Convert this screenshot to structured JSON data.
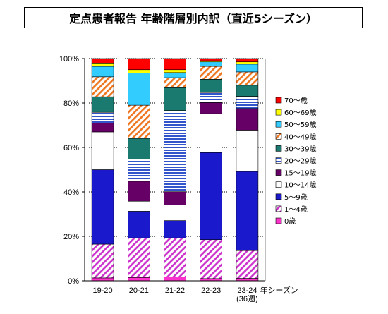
{
  "title": "定点患者報告  年齢階層別内訳（直近5シーズン）",
  "chart_data": {
    "type": "bar",
    "stacked": true,
    "percent": true,
    "categories": [
      "19-20",
      "20-21",
      "21-22",
      "22-23",
      "23-24"
    ],
    "category_note": [
      "年シーズン",
      "(36週)"
    ],
    "yticks": [
      "0%",
      "20%",
      "40%",
      "60%",
      "80%",
      "100%"
    ],
    "ylim": [
      0,
      100
    ],
    "grid": true,
    "legend_position": "right",
    "series": [
      {
        "name": "0歳",
        "color": "#ff33cc",
        "pattern": "solid",
        "values": [
          1.3,
          1.5,
          1.8,
          1.0,
          1.1
        ]
      },
      {
        "name": "1～4歳",
        "color": "#cc33cc",
        "pattern": "diagonal",
        "values": [
          15.2,
          17.8,
          17.5,
          17.5,
          12.5
        ]
      },
      {
        "name": "5～9歳",
        "color": "#1a1acc",
        "pattern": "solid",
        "values": [
          33.5,
          12.0,
          7.8,
          39.2,
          35.6
        ]
      },
      {
        "name": "10～14歳",
        "color": "#ffffff",
        "pattern": "solid",
        "values": [
          17.0,
          4.5,
          7.0,
          17.5,
          18.6
        ]
      },
      {
        "name": "15～19歳",
        "color": "#660066",
        "pattern": "solid",
        "values": [
          4.0,
          9.0,
          6.0,
          5.0,
          9.7
        ]
      },
      {
        "name": "20～29歳",
        "color": "#3355cc",
        "pattern": "hstripe",
        "values": [
          4.8,
          10.0,
          36.5,
          4.5,
          5.5
        ]
      },
      {
        "name": "30～39歳",
        "color": "#1a7a70",
        "pattern": "solid",
        "values": [
          7.0,
          9.3,
          10.3,
          6.0,
          5.0
        ]
      },
      {
        "name": "40～49歳",
        "color": "#ee7722",
        "pattern": "diagonal",
        "values": [
          9.0,
          14.9,
          4.5,
          5.8,
          6.0
        ]
      },
      {
        "name": "50～59歳",
        "color": "#33ccff",
        "pattern": "solid",
        "values": [
          4.7,
          14.5,
          2.3,
          2.0,
          3.5
        ]
      },
      {
        "name": "60～69歳",
        "color": "#ffff00",
        "pattern": "solid",
        "values": [
          1.5,
          1.5,
          1.3,
          0.5,
          1.0
        ]
      },
      {
        "name": "70～歳",
        "color": "#ff0000",
        "pattern": "solid",
        "values": [
          2.0,
          5.0,
          5.0,
          1.0,
          1.5
        ]
      }
    ]
  }
}
